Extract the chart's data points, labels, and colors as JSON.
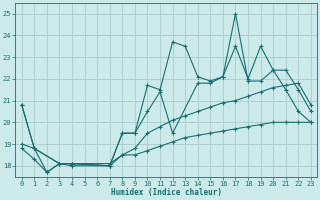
{
  "background_color": "#cceaea",
  "grid_color": "#aacccc",
  "line_color": "#1a6e6e",
  "xlabel": "Humidex (Indice chaleur)",
  "xlim": [
    -0.5,
    23.5
  ],
  "ylim": [
    17.5,
    25.5
  ],
  "yticks": [
    18,
    19,
    20,
    21,
    22,
    23,
    24,
    25
  ],
  "xticks": [
    0,
    1,
    2,
    3,
    4,
    5,
    6,
    7,
    8,
    9,
    10,
    11,
    12,
    13,
    14,
    15,
    16,
    17,
    18,
    19,
    20,
    21,
    22,
    23
  ],
  "series": [
    {
      "x": [
        0,
        1,
        2,
        3,
        4,
        7,
        8,
        9,
        10,
        11,
        12,
        13,
        14,
        15,
        16,
        17,
        18,
        19,
        20,
        21,
        22,
        23
      ],
      "y": [
        20.8,
        18.8,
        17.7,
        18.1,
        18.0,
        18.0,
        19.5,
        19.5,
        21.7,
        21.5,
        23.7,
        23.5,
        22.1,
        21.9,
        22.1,
        25.0,
        21.9,
        21.9,
        22.4,
        21.5,
        20.5,
        20.0
      ]
    },
    {
      "x": [
        0,
        1,
        3,
        4,
        7,
        8,
        9,
        10,
        11,
        12,
        14,
        15,
        16,
        17,
        18,
        19,
        20,
        21,
        22,
        23
      ],
      "y": [
        20.8,
        18.8,
        18.1,
        18.1,
        18.0,
        19.5,
        19.5,
        20.5,
        21.4,
        19.5,
        21.8,
        21.8,
        22.1,
        23.5,
        22.0,
        23.5,
        22.4,
        22.4,
        21.5,
        20.5
      ]
    },
    {
      "x": [
        0,
        1,
        3,
        4,
        7,
        8,
        9,
        10,
        11,
        12,
        13,
        14,
        15,
        16,
        17,
        18,
        19,
        20,
        21,
        22,
        23
      ],
      "y": [
        19.0,
        18.8,
        18.1,
        18.1,
        18.1,
        18.5,
        18.8,
        19.5,
        19.8,
        20.1,
        20.3,
        20.5,
        20.7,
        20.9,
        21.0,
        21.2,
        21.4,
        21.6,
        21.7,
        21.8,
        20.8
      ]
    },
    {
      "x": [
        0,
        1,
        2,
        3,
        4,
        7,
        8,
        9,
        10,
        11,
        12,
        13,
        14,
        15,
        16,
        17,
        18,
        19,
        20,
        21,
        22,
        23
      ],
      "y": [
        18.8,
        18.3,
        17.7,
        18.1,
        18.1,
        18.0,
        18.5,
        18.5,
        18.7,
        18.9,
        19.1,
        19.3,
        19.4,
        19.5,
        19.6,
        19.7,
        19.8,
        19.9,
        20.0,
        20.0,
        20.0,
        20.0
      ]
    }
  ]
}
